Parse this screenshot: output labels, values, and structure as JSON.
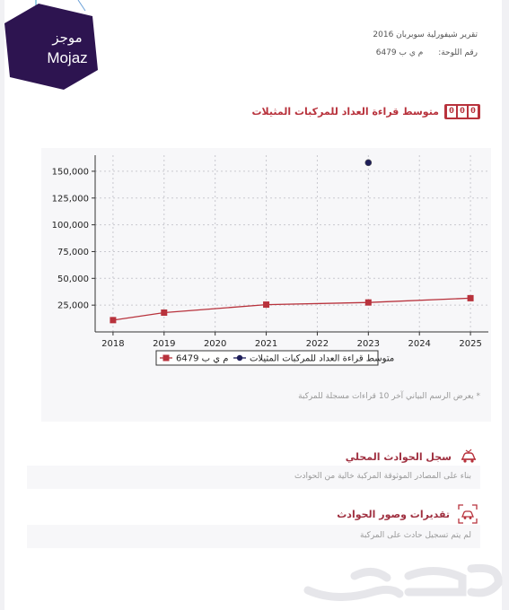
{
  "header": {
    "logo_ar": "موجز",
    "logo_en": "Mojaz",
    "report_title": "تقرير شيفورلية سوبربان 2016",
    "plate_label": "رقم اللوحة:",
    "plate_value": "م ي ب 6479"
  },
  "colors": {
    "brand_purple": "#2d1450",
    "accent_red": "#b8323c",
    "series_avg": "#1e1e5a"
  },
  "odometer_section": {
    "icon": "odometer-icon",
    "odometer_digits": [
      "0",
      "0",
      "0"
    ],
    "title": "متوسط قراءة العداد للمركبات المثيلات",
    "footnote": "* يعرض الرسم البياني آخر 10 قراءات مسجلة للمركبة"
  },
  "chart_data": {
    "type": "line",
    "x": [
      2018,
      2019,
      2020,
      2021,
      2022,
      2023,
      2024,
      2025
    ],
    "xlim": [
      2017.65,
      2025.35
    ],
    "ylim": [
      0,
      165000
    ],
    "yticks": [
      25000,
      50000,
      75000,
      100000,
      125000,
      150000
    ],
    "ytick_labels": [
      "25,000",
      "50,000",
      "75,000",
      "100,000",
      "125,000",
      "150,000"
    ],
    "xtick_labels": [
      "2018",
      "2019",
      "2020",
      "2021",
      "2022",
      "2023",
      "2024",
      "2025"
    ],
    "grid": true,
    "legend_position": "bottom-center",
    "series": [
      {
        "name": "م ي ب 6479",
        "color": "#b8323c",
        "marker": "square",
        "points": [
          [
            2018,
            11000
          ],
          [
            2019,
            18000
          ],
          [
            2021,
            25500
          ],
          [
            2023,
            27500
          ],
          [
            2025,
            31500
          ]
        ]
      },
      {
        "name": "متوسط قراءة العداد للمركبات المثيلات",
        "color": "#1e1e5a",
        "marker": "circle",
        "points": [
          [
            2023,
            158000
          ]
        ]
      }
    ]
  },
  "incidents_local": {
    "icon": "car-crash-icon",
    "title": "سجل الحوادث المحلي",
    "message": "بناء على المصادر الموثوقة المركبة خالية من الحوادث"
  },
  "incidents_photos": {
    "icon": "camera-crash-icon",
    "title": "تقديرات وصور الحوادث",
    "message": "لم يتم تسجيل حادث على المركبة"
  },
  "watermark": {
    "icon": "haraj-watermark-icon"
  }
}
